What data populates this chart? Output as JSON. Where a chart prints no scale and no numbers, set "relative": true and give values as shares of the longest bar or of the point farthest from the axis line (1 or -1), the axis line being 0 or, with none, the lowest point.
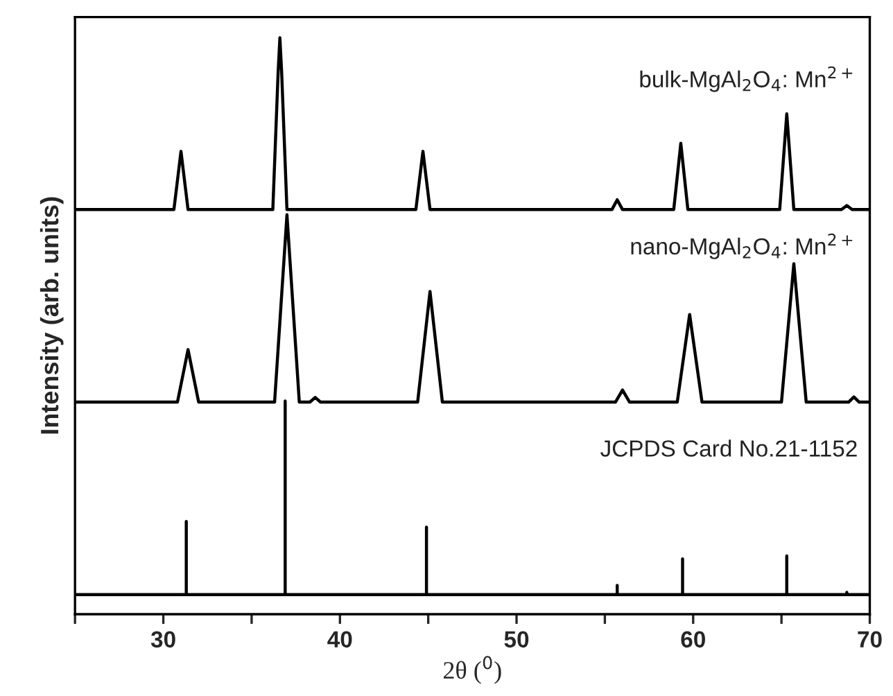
{
  "chart_data": {
    "type": "line",
    "relative": true,
    "xlabel": "2θ ($^{0}$)",
    "ylabel": "Intensity (arb. units)",
    "xlim": [
      25,
      70
    ],
    "xticks": [
      {
        "value": 25,
        "label": null
      },
      30,
      {
        "value": 35,
        "label": null
      },
      40,
      {
        "value": 45,
        "label": null
      },
      50,
      {
        "value": 55,
        "label": null
      },
      60,
      {
        "value": 65,
        "label": null
      },
      70
    ],
    "annotations": [
      "bulk-MgAl$_{2}$O$_{4}$: Mn$^{2+}$",
      "nano-MgAl$_{2}$O$_{4}$: Mn$^{2+}$",
      "JCPDS Card No.21-1152"
    ],
    "tick_labels": "x",
    "grid": false,
    "legend": false,
    "marker": "none",
    "line_style": "solid",
    "series": [
      {
        "color": "#000000",
        "x": [
          25,
          30.6,
          31.0,
          31.4,
          36.2,
          36.5,
          36.6,
          36.7,
          37.0,
          44.3,
          44.7,
          45.1,
          55.4,
          55.7,
          56.0,
          58.9,
          59.3,
          59.7,
          64.9,
          65.3,
          65.7,
          68.4,
          68.7,
          69.0,
          70
        ],
        "values": [
          0.702,
          0.702,
          0.803,
          0.702,
          0.702,
          0.94,
          1.0,
          0.94,
          0.702,
          0.702,
          0.803,
          0.702,
          0.702,
          0.719,
          0.702,
          0.702,
          0.817,
          0.702,
          0.702,
          0.868,
          0.702,
          0.702,
          0.709,
          0.702,
          0.702
        ]
      },
      {
        "color": "#000000",
        "x": [
          25,
          30.8,
          31.4,
          32.0,
          36.3,
          37.0,
          37.7,
          38.3,
          38.6,
          38.9,
          44.4,
          45.1,
          45.8,
          55.6,
          56.0,
          56.4,
          59.1,
          59.8,
          60.5,
          65.0,
          65.7,
          66.4,
          68.8,
          69.1,
          69.4,
          70
        ],
        "values": [
          0.368,
          0.368,
          0.459,
          0.368,
          0.368,
          0.693,
          0.368,
          0.368,
          0.376,
          0.368,
          0.368,
          0.56,
          0.368,
          0.368,
          0.389,
          0.368,
          0.368,
          0.52,
          0.368,
          0.368,
          0.608,
          0.368,
          0.368,
          0.377,
          0.368,
          0.368
        ]
      },
      {
        "color": "#000000",
        "x": [
          25,
          31.3,
          31.3,
          31.3,
          36.9,
          36.9,
          36.9,
          44.9,
          44.9,
          44.9,
          55.7,
          55.7,
          55.7,
          59.4,
          59.4,
          59.4,
          65.3,
          65.3,
          65.3,
          68.7,
          68.7,
          68.7,
          70
        ],
        "values": [
          0.034,
          0.034,
          0.161,
          0.034,
          0.034,
          0.37,
          0.034,
          0.034,
          0.151,
          0.034,
          0.034,
          0.05,
          0.034,
          0.034,
          0.096,
          0.034,
          0.034,
          0.101,
          0.034,
          0.034,
          0.038,
          0.034,
          0.034
        ]
      }
    ]
  }
}
